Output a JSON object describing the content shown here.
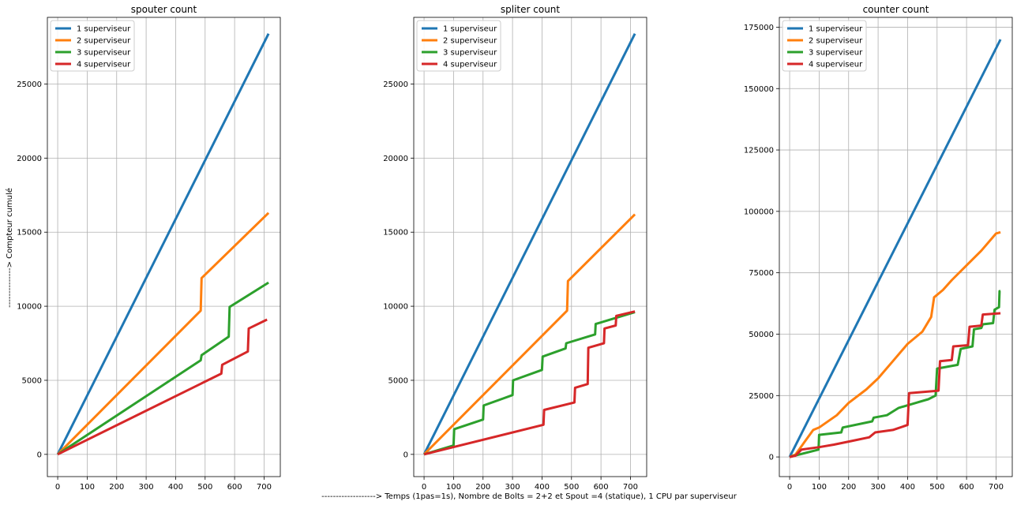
{
  "figure": {
    "ylabel": "--------------> Compteur cumulé",
    "xlabel": "-------------------> Temps (1pas=1s), Nombre de Bolts = 2+2 et Spout =4 (statique), 1 CPU par superviseur"
  },
  "colors": {
    "1 superviseur": "#1f77b4",
    "2 superviseur": "#ff7f0e",
    "3 superviseur": "#2ca02c",
    "4 superviseur": "#d62728"
  },
  "chart_data": [
    {
      "type": "line",
      "title": "spouter count",
      "xlim": [
        -35,
        755
      ],
      "ylim": [
        -1500,
        29500
      ],
      "xticks": [
        0,
        100,
        200,
        300,
        400,
        500,
        600,
        700
      ],
      "yticks": [
        0,
        5000,
        10000,
        15000,
        20000,
        25000
      ],
      "grid": true,
      "legend": "top-left",
      "series": [
        {
          "name": "1 superviseur",
          "points": [
            [
              0,
              0
            ],
            [
              715,
              28400
            ]
          ]
        },
        {
          "name": "2 superviseur",
          "points": [
            [
              0,
              0
            ],
            [
              485,
              9700
            ],
            [
              488,
              11900
            ],
            [
              715,
              16300
            ]
          ]
        },
        {
          "name": "3 superviseur",
          "points": [
            [
              0,
              0
            ],
            [
              485,
              6350
            ],
            [
              488,
              6700
            ],
            [
              580,
              7950
            ],
            [
              583,
              9950
            ],
            [
              715,
              11600
            ]
          ]
        },
        {
          "name": "4 superviseur",
          "points": [
            [
              0,
              0
            ],
            [
              555,
              5450
            ],
            [
              558,
              6050
            ],
            [
              645,
              6950
            ],
            [
              648,
              8500
            ],
            [
              710,
              9100
            ]
          ]
        }
      ]
    },
    {
      "type": "line",
      "title": "spliter count",
      "xlim": [
        -35,
        755
      ],
      "ylim": [
        -1500,
        29500
      ],
      "xticks": [
        0,
        100,
        200,
        300,
        400,
        500,
        600,
        700
      ],
      "yticks": [
        0,
        5000,
        10000,
        15000,
        20000,
        25000
      ],
      "grid": true,
      "legend": "top-left",
      "series": [
        {
          "name": "1 superviseur",
          "points": [
            [
              0,
              0
            ],
            [
              715,
              28400
            ]
          ]
        },
        {
          "name": "2 superviseur",
          "points": [
            [
              0,
              0
            ],
            [
              485,
              9700
            ],
            [
              488,
              11700
            ],
            [
              715,
              16200
            ]
          ]
        },
        {
          "name": "3 superviseur",
          "points": [
            [
              0,
              0
            ],
            [
              100,
              600
            ],
            [
              102,
              1700
            ],
            [
              200,
              2350
            ],
            [
              202,
              3300
            ],
            [
              300,
              4000
            ],
            [
              302,
              5000
            ],
            [
              400,
              5700
            ],
            [
              402,
              6600
            ],
            [
              480,
              7150
            ],
            [
              482,
              7500
            ],
            [
              580,
              8100
            ],
            [
              582,
              8800
            ],
            [
              715,
              9600
            ]
          ]
        },
        {
          "name": "4 superviseur",
          "points": [
            [
              0,
              0
            ],
            [
              405,
              2000
            ],
            [
              407,
              3000
            ],
            [
              510,
              3500
            ],
            [
              512,
              4500
            ],
            [
              555,
              4750
            ],
            [
              557,
              7200
            ],
            [
              610,
              7500
            ],
            [
              612,
              8500
            ],
            [
              650,
              8700
            ],
            [
              652,
              9350
            ],
            [
              715,
              9650
            ]
          ]
        }
      ]
    },
    {
      "type": "line",
      "title": "counter count",
      "xlim": [
        -35,
        755
      ],
      "ylim": [
        -8000,
        179000
      ],
      "xticks": [
        0,
        100,
        200,
        300,
        400,
        500,
        600,
        700
      ],
      "yticks": [
        0,
        25000,
        50000,
        75000,
        100000,
        125000,
        150000,
        175000
      ],
      "grid": true,
      "legend": "top-left",
      "series": [
        {
          "name": "1 superviseur",
          "points": [
            [
              0,
              0
            ],
            [
              715,
              170000
            ]
          ]
        },
        {
          "name": "2 superviseur",
          "points": [
            [
              0,
              0
            ],
            [
              20,
              1000
            ],
            [
              50,
              6000
            ],
            [
              80,
              11000
            ],
            [
              100,
              12000
            ],
            [
              160,
              17000
            ],
            [
              200,
              22000
            ],
            [
              260,
              27500
            ],
            [
              300,
              32000
            ],
            [
              350,
              39000
            ],
            [
              400,
              46000
            ],
            [
              450,
              51000
            ],
            [
              480,
              57000
            ],
            [
              490,
              65000
            ],
            [
              520,
              68000
            ],
            [
              550,
              72000
            ],
            [
              600,
              78000
            ],
            [
              650,
              84000
            ],
            [
              700,
              91000
            ],
            [
              715,
              91500
            ]
          ]
        },
        {
          "name": "3 superviseur",
          "points": [
            [
              0,
              0
            ],
            [
              98,
              3000
            ],
            [
              100,
              9000
            ],
            [
              175,
              10000
            ],
            [
              180,
              12000
            ],
            [
              280,
              14500
            ],
            [
              285,
              16000
            ],
            [
              330,
              17000
            ],
            [
              350,
              18500
            ],
            [
              370,
              20000
            ],
            [
              470,
              23500
            ],
            [
              495,
              25000
            ],
            [
              500,
              36000
            ],
            [
              570,
              37500
            ],
            [
              580,
              44000
            ],
            [
              620,
              45000
            ],
            [
              625,
              52000
            ],
            [
              650,
              52500
            ],
            [
              655,
              54000
            ],
            [
              690,
              54500
            ],
            [
              695,
              60000
            ],
            [
              710,
              61000
            ],
            [
              712,
              67500
            ],
            [
              715,
              67500
            ]
          ]
        },
        {
          "name": "4 superviseur",
          "points": [
            [
              0,
              0
            ],
            [
              20,
              500
            ],
            [
              40,
              3000
            ],
            [
              100,
              4000
            ],
            [
              150,
              5000
            ],
            [
              210,
              6500
            ],
            [
              270,
              8000
            ],
            [
              290,
              10000
            ],
            [
              350,
              11000
            ],
            [
              400,
              13000
            ],
            [
              405,
              26000
            ],
            [
              505,
              27000
            ],
            [
              510,
              39000
            ],
            [
              550,
              39500
            ],
            [
              555,
              45000
            ],
            [
              605,
              45500
            ],
            [
              610,
              53000
            ],
            [
              650,
              53500
            ],
            [
              655,
              58000
            ],
            [
              715,
              58500
            ]
          ]
        }
      ]
    }
  ]
}
